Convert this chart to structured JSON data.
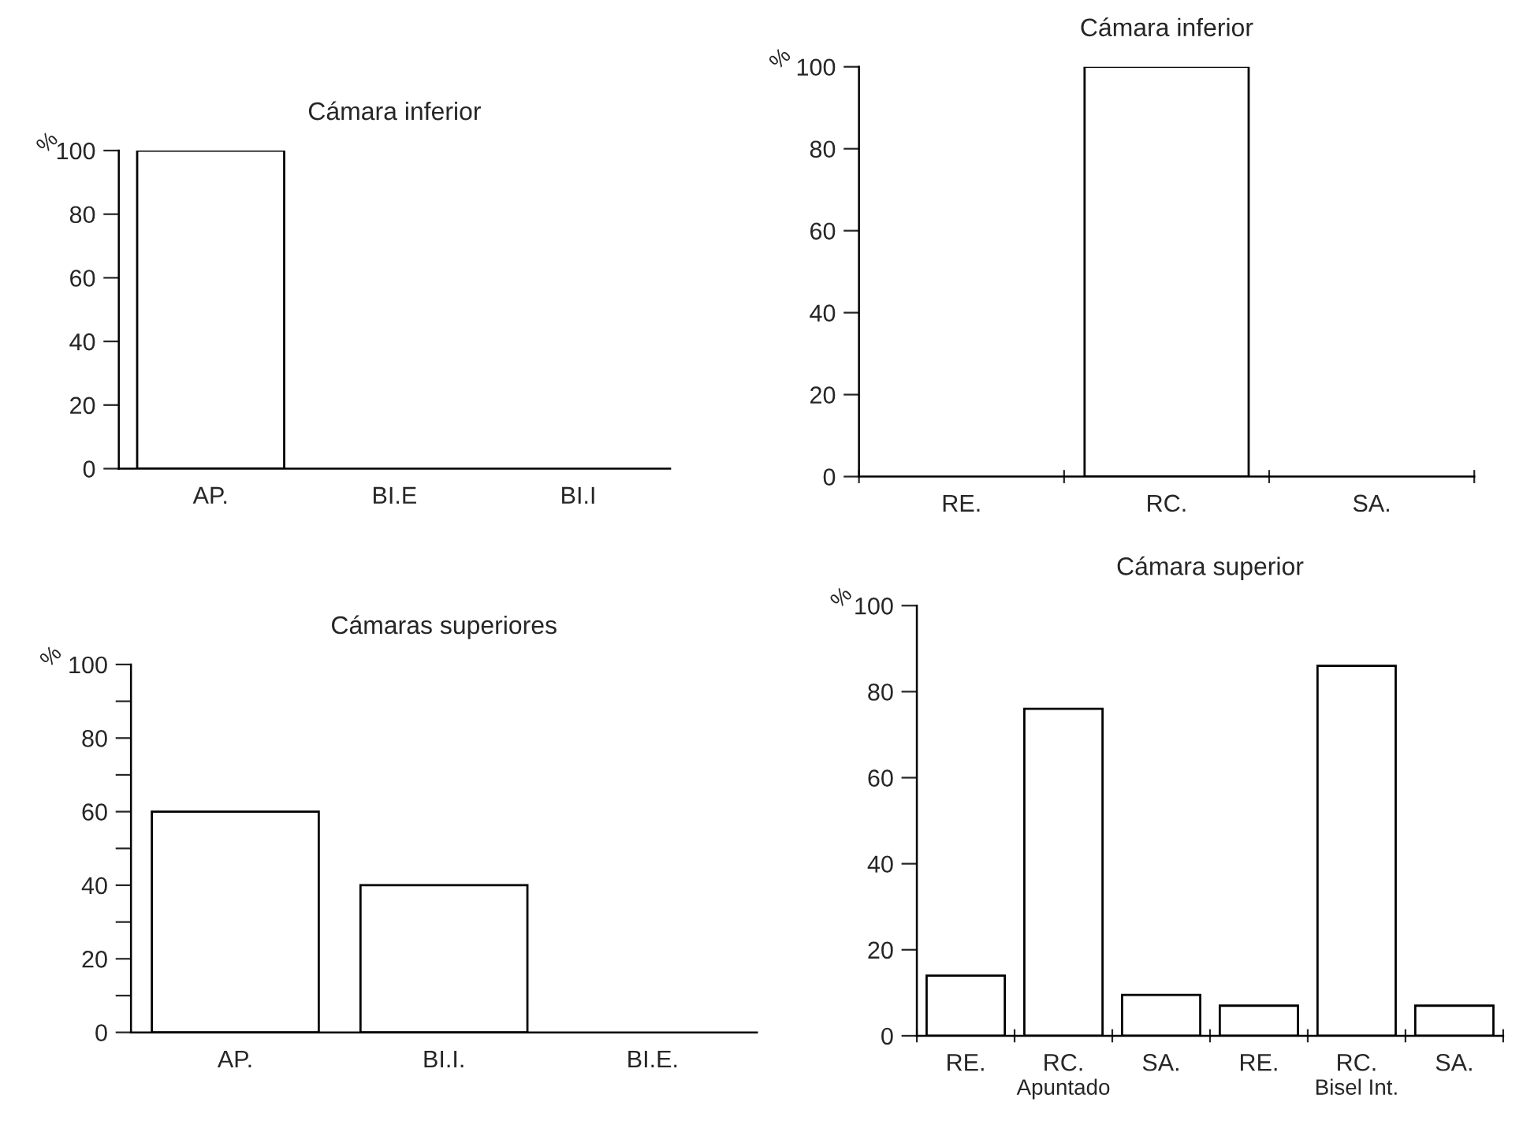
{
  "chart_data": [
    {
      "type": "bar",
      "title": "Cámara inferior",
      "ylabel": "%",
      "categories": [
        "AP.",
        "BI.E",
        "BI.I"
      ],
      "series": [
        {
          "color": "#ffffff",
          "values": [
            100,
            0,
            0
          ]
        }
      ],
      "ylim": [
        0,
        100
      ],
      "yticks": [
        0,
        20,
        40,
        60,
        80,
        100
      ],
      "grid": false,
      "legend": false
    },
    {
      "type": "bar",
      "title": "Cámara inferior",
      "ylabel": "%",
      "categories": [
        "RE.",
        "RC.",
        "SA."
      ],
      "series": [
        {
          "color": "#ffffff",
          "values": [
            0,
            100,
            0
          ]
        }
      ],
      "ylim": [
        0,
        100
      ],
      "yticks": [
        0,
        20,
        40,
        60,
        80,
        100
      ],
      "grid": false,
      "legend": false
    },
    {
      "type": "bar",
      "title": "Cámaras superiores",
      "ylabel": "%",
      "categories": [
        "AP.",
        "BI.I.",
        "BI.E."
      ],
      "series": [
        {
          "color": "#ffffff",
          "values": [
            60,
            40,
            0
          ]
        }
      ],
      "ylim": [
        0,
        100
      ],
      "yticks": [
        0,
        {
          "value": 10,
          "label": null
        },
        20,
        {
          "value": 30,
          "label": null
        },
        40,
        {
          "value": 50,
          "label": null
        },
        60,
        {
          "value": 70,
          "label": null
        },
        80,
        {
          "value": 90,
          "label": null
        },
        100
      ],
      "grid": false,
      "legend": false
    },
    {
      "type": "bar",
      "title": "Cámara superior",
      "ylabel": "%",
      "categories": [
        "RE.",
        "RC.",
        "SA.",
        "RE.",
        "RC.",
        "SA."
      ],
      "series": [
        {
          "color": "#ffffff",
          "values": [
            14,
            76,
            9.5,
            7,
            86,
            7
          ]
        }
      ],
      "ylim": [
        0,
        100
      ],
      "yticks": [
        0,
        20,
        40,
        60,
        80,
        100
      ],
      "annotations": [
        "Apuntado",
        "Bisel Int."
      ],
      "grid": false,
      "legend": false
    }
  ]
}
